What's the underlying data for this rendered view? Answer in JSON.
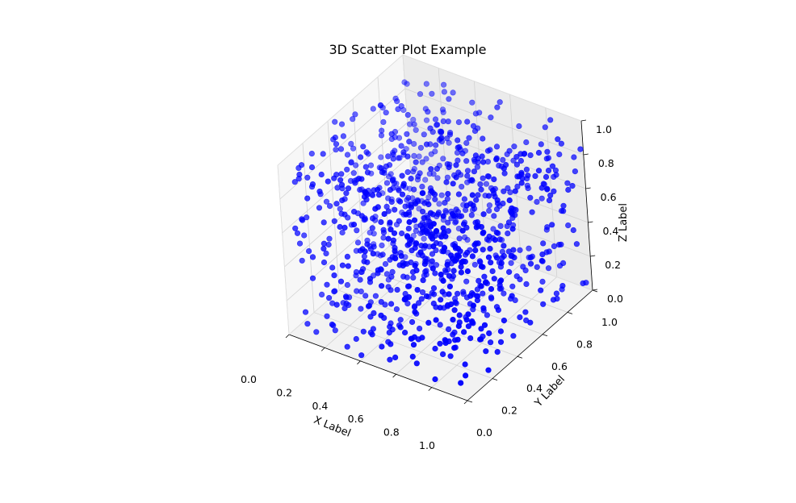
{
  "chart_data": {
    "type": "scatter",
    "projection": "3d",
    "title": "3D Scatter Plot Example",
    "xlabel": "X Label",
    "ylabel": "Y Label",
    "zlabel": "Z Label",
    "xlim": [
      0,
      1
    ],
    "ylim": [
      0,
      1
    ],
    "zlim": [
      0,
      1
    ],
    "x_ticks": [
      "0.0",
      "0.2",
      "0.4",
      "0.6",
      "0.8",
      "1.0"
    ],
    "y_ticks": [
      "0.0",
      "0.2",
      "0.4",
      "0.6",
      "0.8",
      "1.0"
    ],
    "z_ticks": [
      "0.0",
      "0.2",
      "0.4",
      "0.6",
      "0.8",
      "1.0"
    ],
    "grid": true,
    "marker_color": "#0000ff",
    "point_count": 1000,
    "distribution": "uniform random in [0, 1] on each axis"
  }
}
